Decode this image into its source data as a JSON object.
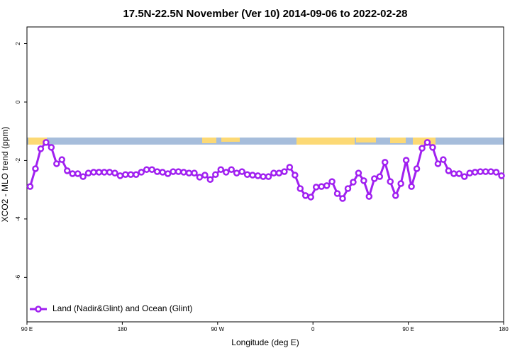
{
  "chart_data": {
    "type": "line",
    "title": "17.5N-22.5N November (Ver 10)   2014-09-06 to 2022-02-28",
    "x_label": "Longitude (deg E)",
    "y_label": "XCO2 - MLO trend (ppm)",
    "xlim": [
      90,
      540
    ],
    "xticks": [
      {
        "value": 90,
        "label": "90 E"
      },
      180,
      {
        "value": 270,
        "label": "90 W"
      },
      {
        "value": 360,
        "label": "0"
      },
      {
        "value": 450,
        "label": "90 E"
      },
      {
        "value": 540,
        "label": "180"
      }
    ],
    "ylim": [
      -7.52,
      2.57
    ],
    "yticks": [
      -6,
      -4,
      -2,
      0,
      2
    ],
    "legend": "bottom-left",
    "x": [
      93,
      98,
      103,
      108,
      113,
      118,
      123,
      128,
      133,
      138,
      143,
      148,
      153,
      158,
      163,
      168,
      173,
      178,
      183,
      188,
      193,
      198,
      203,
      208,
      213,
      218,
      223,
      228,
      233,
      238,
      243,
      248,
      253,
      258,
      263,
      268,
      273,
      278,
      283,
      288,
      293,
      298,
      303,
      308,
      313,
      318,
      323,
      328,
      333,
      338,
      343,
      348,
      353,
      358,
      363,
      368,
      373,
      378,
      383,
      388,
      393,
      398,
      403,
      408,
      413,
      418,
      423,
      428,
      433,
      438,
      443,
      448,
      453,
      458,
      463,
      468,
      473,
      478,
      483,
      488,
      493,
      498,
      503,
      508,
      513,
      518,
      523,
      528,
      533,
      538
    ],
    "series": [
      {
        "name": "Land (Nadir&Glint) and Ocean (Glint)",
        "color": "#a020f0",
        "values": [
          -2.89,
          -2.28,
          -1.6,
          -1.38,
          -1.55,
          -2.11,
          -1.97,
          -2.35,
          -2.45,
          -2.45,
          -2.55,
          -2.43,
          -2.4,
          -2.4,
          -2.4,
          -2.4,
          -2.43,
          -2.52,
          -2.48,
          -2.48,
          -2.48,
          -2.4,
          -2.31,
          -2.31,
          -2.38,
          -2.4,
          -2.45,
          -2.38,
          -2.38,
          -2.4,
          -2.43,
          -2.43,
          -2.57,
          -2.5,
          -2.65,
          -2.48,
          -2.31,
          -2.4,
          -2.31,
          -2.43,
          -2.38,
          -2.48,
          -2.5,
          -2.52,
          -2.55,
          -2.55,
          -2.43,
          -2.43,
          -2.38,
          -2.23,
          -2.5,
          -2.96,
          -3.2,
          -3.25,
          -2.91,
          -2.89,
          -2.86,
          -2.72,
          -3.13,
          -3.3,
          -2.96,
          -2.74,
          -2.43,
          -2.69,
          -3.23,
          -2.62,
          -2.55,
          -2.06,
          -2.72,
          -3.2,
          -2.79,
          -1.99,
          -2.89,
          -2.28,
          -1.58,
          -1.38,
          -1.55,
          -2.11,
          -1.97,
          -2.35,
          -2.45,
          -2.45,
          -2.55,
          -2.43,
          -2.4,
          -2.38,
          -2.38,
          -2.38,
          -2.4,
          -2.52
        ]
      }
    ]
  }
}
